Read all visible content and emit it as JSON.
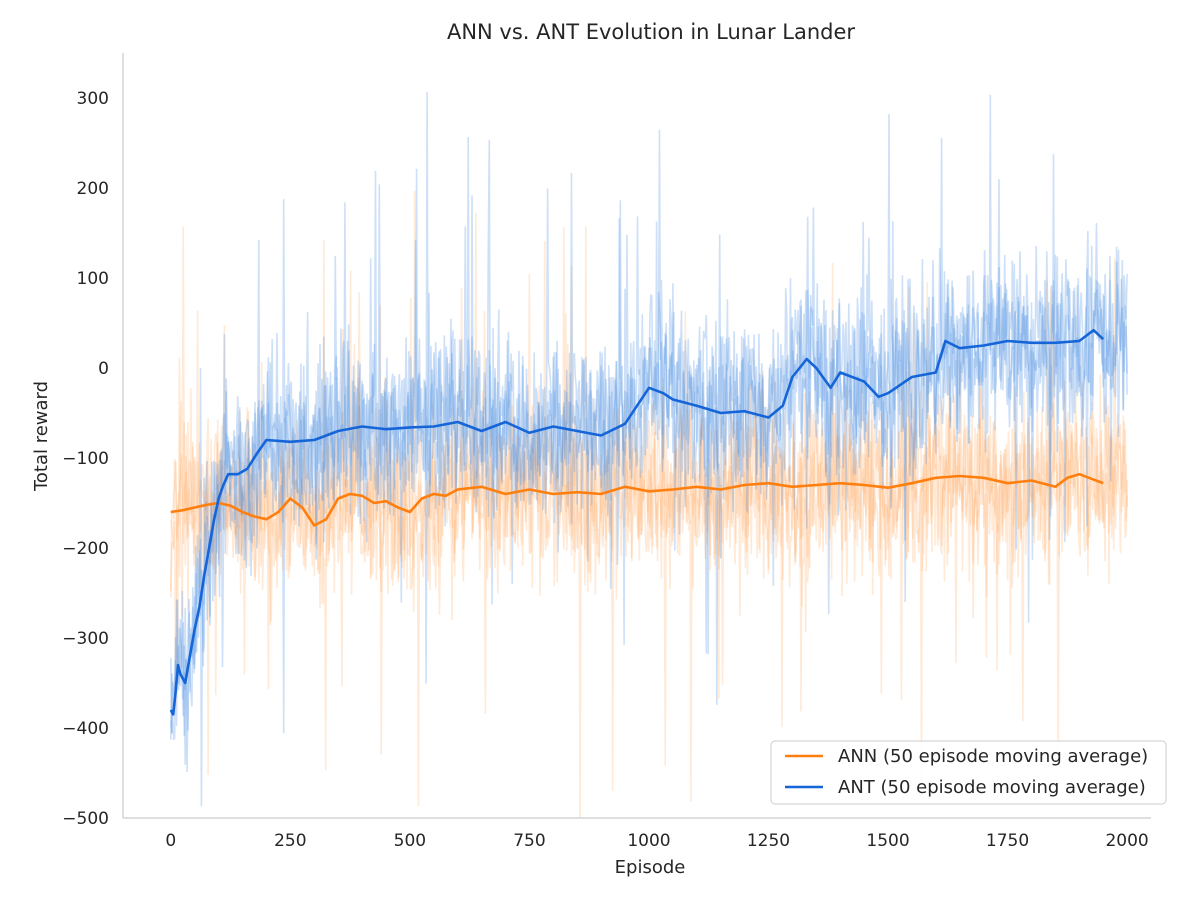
{
  "chart_data": {
    "type": "line",
    "title": "ANN vs. ANT Evolution in Lunar Lander",
    "xlabel": "Episode",
    "ylabel": "Total reward",
    "xlim": [
      -100,
      2050
    ],
    "ylim": [
      -500,
      350
    ],
    "xticks": [
      0,
      250,
      500,
      750,
      1000,
      1250,
      1500,
      1750,
      2000
    ],
    "yticks": [
      -500,
      -400,
      -300,
      -200,
      -100,
      0,
      100,
      200,
      300
    ],
    "xtick_labels": [
      "0",
      "250",
      "500",
      "750",
      "1000",
      "1250",
      "1500",
      "1750",
      "2000"
    ],
    "ytick_labels": [
      "−500",
      "−400",
      "−300",
      "−200",
      "−100",
      "0",
      "100",
      "200",
      "300"
    ],
    "grid": false,
    "legend_position": "bottom-right",
    "series": [
      {
        "name": "ANN (50 episode moving average)",
        "color": "#ff7f0e",
        "raw_color": "#ffa04d",
        "raw_band": [
          -330,
          40
        ],
        "moving_average": {
          "x": [
            0,
            25,
            50,
            75,
            100,
            125,
            150,
            175,
            200,
            225,
            250,
            275,
            300,
            325,
            350,
            375,
            400,
            425,
            450,
            475,
            500,
            525,
            550,
            575,
            600,
            650,
            700,
            750,
            800,
            850,
            900,
            950,
            1000,
            1050,
            1100,
            1150,
            1200,
            1250,
            1300,
            1350,
            1400,
            1450,
            1500,
            1550,
            1600,
            1650,
            1700,
            1750,
            1800,
            1850,
            1875,
            1900,
            1950
          ],
          "y": [
            -160,
            -158,
            -155,
            -152,
            -150,
            -153,
            -160,
            -165,
            -168,
            -160,
            -145,
            -155,
            -175,
            -168,
            -145,
            -140,
            -142,
            -150,
            -148,
            -155,
            -160,
            -145,
            -140,
            -142,
            -135,
            -132,
            -140,
            -135,
            -140,
            -138,
            -140,
            -132,
            -137,
            -135,
            -132,
            -135,
            -130,
            -128,
            -132,
            -130,
            -128,
            -130,
            -133,
            -128,
            -122,
            -120,
            -122,
            -128,
            -125,
            -132,
            -122,
            -118,
            -128
          ]
        }
      },
      {
        "name": "ANT (50 episode moving average)",
        "color": "#1565d8",
        "raw_color": "#4a90e2",
        "raw_band": [
          -220,
          90
        ],
        "moving_average": {
          "x": [
            0,
            5,
            10,
            15,
            20,
            30,
            40,
            50,
            60,
            70,
            80,
            90,
            100,
            110,
            120,
            140,
            160,
            180,
            200,
            250,
            300,
            350,
            400,
            450,
            500,
            550,
            600,
            650,
            700,
            750,
            800,
            850,
            900,
            950,
            1000,
            1030,
            1050,
            1100,
            1150,
            1200,
            1250,
            1280,
            1300,
            1330,
            1350,
            1380,
            1400,
            1450,
            1480,
            1500,
            1550,
            1600,
            1620,
            1650,
            1700,
            1750,
            1800,
            1850,
            1900,
            1930,
            1950
          ],
          "y": [
            -380,
            -385,
            -360,
            -330,
            -340,
            -350,
            -320,
            -290,
            -265,
            -230,
            -200,
            -170,
            -145,
            -130,
            -118,
            -118,
            -112,
            -95,
            -80,
            -82,
            -80,
            -70,
            -65,
            -68,
            -66,
            -65,
            -60,
            -70,
            -60,
            -72,
            -65,
            -70,
            -75,
            -62,
            -22,
            -28,
            -35,
            -42,
            -50,
            -48,
            -55,
            -42,
            -10,
            10,
            0,
            -22,
            -5,
            -15,
            -32,
            -28,
            -10,
            -5,
            30,
            22,
            25,
            30,
            28,
            28,
            30,
            42,
            32
          ]
        }
      }
    ]
  }
}
